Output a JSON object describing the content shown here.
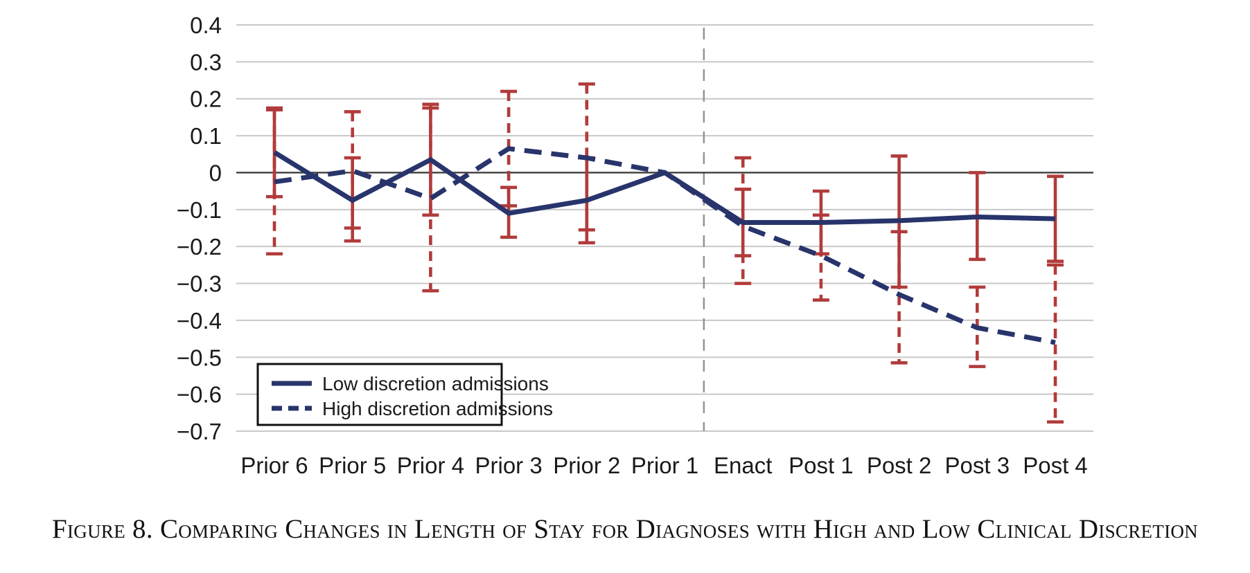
{
  "figure": {
    "caption": "Figure 8. Comparing Changes in Length of Stay for Diagnoses with High and Low Clinical Discretion"
  },
  "chart_data": {
    "type": "line",
    "title": "",
    "xlabel": "",
    "ylabel": "",
    "categories": [
      "Prior 6",
      "Prior 5",
      "Prior 4",
      "Prior 3",
      "Prior 2",
      "Prior 1",
      "Enact",
      "Post 1",
      "Post 2",
      "Post 3",
      "Post 4"
    ],
    "series": [
      {
        "name": "Low discretion admissions",
        "line_style": "solid",
        "error_bar_style": "solid",
        "values": [
          0.055,
          -0.075,
          0.035,
          -0.11,
          -0.075,
          0,
          -0.135,
          -0.135,
          -0.13,
          -0.12,
          -0.125
        ],
        "ci_low": [
          -0.065,
          -0.185,
          -0.115,
          -0.175,
          -0.19,
          null,
          -0.225,
          -0.22,
          -0.31,
          -0.235,
          -0.24
        ],
        "ci_high": [
          0.175,
          0.04,
          0.185,
          -0.04,
          0.04,
          null,
          -0.045,
          -0.05,
          0.045,
          0.0,
          -0.01
        ]
      },
      {
        "name": "High discretion admissions",
        "line_style": "dashed",
        "error_bar_style": "dashed",
        "values": [
          -0.025,
          0.005,
          -0.07,
          0.065,
          0.04,
          0,
          -0.145,
          -0.225,
          -0.33,
          -0.42,
          -0.46
        ],
        "ci_low": [
          -0.22,
          -0.15,
          -0.32,
          -0.09,
          -0.155,
          null,
          -0.3,
          -0.345,
          -0.515,
          -0.525,
          -0.675
        ],
        "ci_high": [
          0.17,
          0.165,
          0.175,
          0.22,
          0.24,
          null,
          0.04,
          -0.115,
          -0.16,
          -0.31,
          -0.25
        ]
      }
    ],
    "ylim": [
      -0.7,
      0.4
    ],
    "ytick_step": 0.1,
    "ytick_labels": [
      "0.4",
      "0.3",
      "0.2",
      "0.1",
      "0",
      "−0.1",
      "−0.2",
      "−0.3",
      "−0.4",
      "−0.5",
      "−0.6",
      "−0.7"
    ],
    "grid": true,
    "zero_line": true,
    "vline_after_category": "Prior 1",
    "legend": {
      "position": "bottom-left",
      "entries": [
        "Low discretion admissions",
        "High discretion admissions"
      ]
    },
    "colors": {
      "line": "#28346b",
      "error_bar": "#b13b3b",
      "grid": "#c8c8c8",
      "zero_line": "#3c3c3c",
      "vline": "#909090",
      "text": "#1a1a1a",
      "background": "#ffffff"
    }
  }
}
